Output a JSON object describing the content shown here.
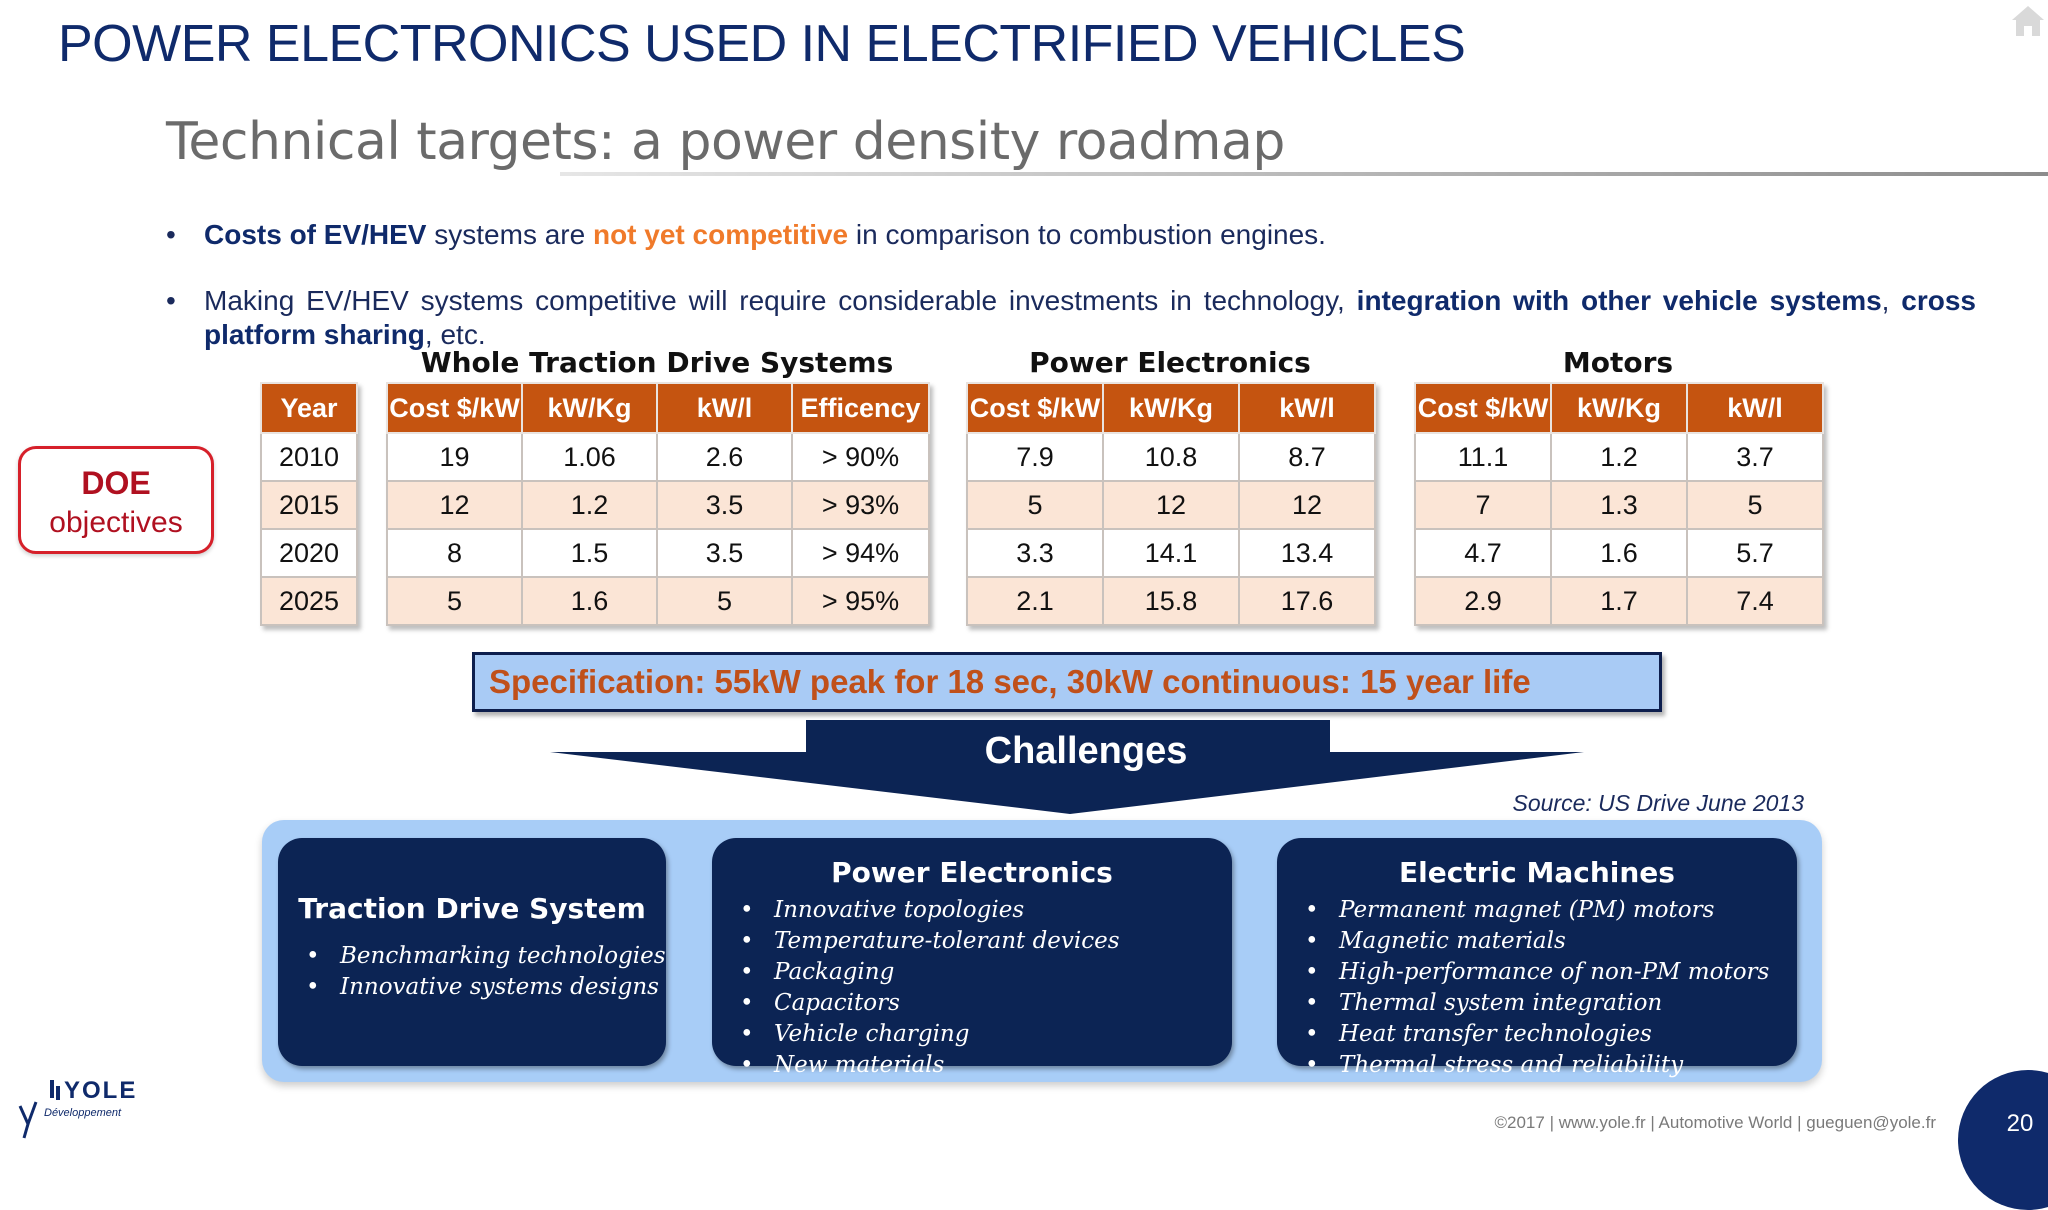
{
  "header": {
    "title": "POWER ELECTRONICS USED IN ELECTRIFIED VEHICLES",
    "subtitle": "Technical targets: a power density roadmap"
  },
  "bullets": [
    {
      "b1_bold": "Costs of EV/HEV",
      "b1_mid": " systems are ",
      "b1_orange": "not yet competitive",
      "b1_end": " in comparison to combustion engines."
    },
    {
      "b2_start": "Making EV/HEV systems competitive will require considerable investments in technology, ",
      "b2_bold1": "integration with other vehicle systems",
      "b2_mid": ", ",
      "b2_bold2": "cross platform sharing",
      "b2_end": ", etc."
    }
  ],
  "doe": {
    "title": "DOE",
    "subtitle": "objectives"
  },
  "tables": {
    "year": {
      "header": "Year",
      "rows": [
        "2010",
        "2015",
        "2020",
        "2025"
      ]
    },
    "whole": {
      "title": "Whole Traction Drive Systems",
      "headers": [
        "Cost $/kW",
        "kW/Kg",
        "kW/l",
        "Efficency"
      ],
      "rows": [
        [
          "19",
          "1.06",
          "2.6",
          "> 90%"
        ],
        [
          "12",
          "1.2",
          "3.5",
          "> 93%"
        ],
        [
          "8",
          "1.5",
          "3.5",
          "> 94%"
        ],
        [
          "5",
          "1.6",
          "5",
          "> 95%"
        ]
      ]
    },
    "pe": {
      "title": "Power Electronics",
      "headers": [
        "Cost $/kW",
        "kW/Kg",
        "kW/l"
      ],
      "rows": [
        [
          "7.9",
          "10.8",
          "8.7"
        ],
        [
          "5",
          "12",
          "12"
        ],
        [
          "3.3",
          "14.1",
          "13.4"
        ],
        [
          "2.1",
          "15.8",
          "17.6"
        ]
      ]
    },
    "motors": {
      "title": "Motors",
      "headers": [
        "Cost $/kW",
        "kW/Kg",
        "kW/l"
      ],
      "rows": [
        [
          "11.1",
          "1.2",
          "3.7"
        ],
        [
          "7",
          "1.3",
          "5"
        ],
        [
          "4.7",
          "1.6",
          "5.7"
        ],
        [
          "2.9",
          "1.7",
          "7.4"
        ]
      ]
    }
  },
  "specification": "Specification: 55kW peak for 18 sec, 30kW continuous: 15 year life",
  "challenges": {
    "label": "Challenges",
    "source": "Source: US Drive June 2013",
    "cards": {
      "traction": {
        "title": "Traction Drive System",
        "items": [
          "Benchmarking technologies",
          "Innovative systems designs"
        ]
      },
      "pe": {
        "title": "Power Electronics",
        "items": [
          "Innovative topologies",
          "Temperature-tolerant devices",
          "Packaging",
          "Capacitors",
          "Vehicle charging",
          "New materials"
        ]
      },
      "em": {
        "title": "Electric Machines",
        "items": [
          "Permanent magnet (PM) motors",
          "Magnetic materials",
          "High-performance of non-PM motors",
          "Thermal system integration",
          "Heat transfer technologies",
          "Thermal stress and reliability"
        ]
      }
    }
  },
  "footer": {
    "logo_text": "YOLE",
    "logo_sub": "Développement",
    "text": "©2017 | www.yole.fr | Automotive World | gueguen@yole.fr",
    "page": "20"
  },
  "colors": {
    "title_blue": "#0f2a6b",
    "table_header": "#c55410",
    "table_alt_row": "#fbe5d6",
    "accent_orange": "#f07a2a",
    "doe_red": "#d6202a",
    "panel_blue": "#a8cdf7",
    "card_navy": "#0c2454"
  }
}
